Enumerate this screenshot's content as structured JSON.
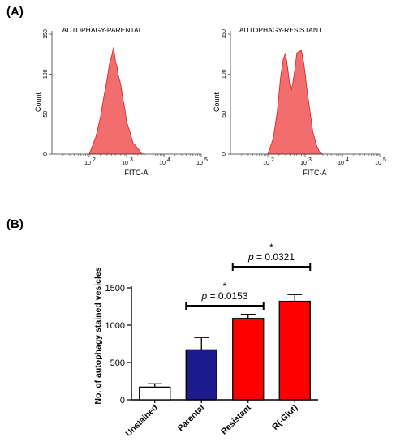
{
  "panel_labels": {
    "a": "(A)",
    "b": "(B)"
  },
  "chart_data": [
    {
      "type": "area",
      "title": "AUTOPHAGY-PARENTAL",
      "xlabel": "FITC-A",
      "ylabel": "Count",
      "x_scale": "log",
      "xlim": [
        10,
        100000
      ],
      "ylim": [
        0,
        150
      ],
      "x_ticks": [
        {
          "base": "10",
          "exp": "2",
          "value": 100
        },
        {
          "base": "10",
          "exp": "3",
          "value": 1000
        },
        {
          "base": "10",
          "exp": "4",
          "value": 10000
        },
        {
          "base": "10",
          "exp": "5",
          "value": 100000
        }
      ],
      "y_ticks": [
        "0",
        "50",
        "100",
        "150"
      ],
      "fill_color": "#f26d6d",
      "stroke_color": "#d42020",
      "x": [
        100,
        150,
        200,
        250,
        300,
        350,
        400,
        450,
        500,
        550,
        600,
        700,
        800,
        900,
        1000,
        1200,
        1500,
        2000,
        2500,
        3000
      ],
      "y": [
        0,
        20,
        48,
        72,
        95,
        112,
        125,
        132,
        118,
        108,
        100,
        85,
        70,
        55,
        42,
        28,
        15,
        6,
        2,
        0
      ]
    },
    {
      "type": "area",
      "title": "AUTOPHAGY-RESISTANT",
      "xlabel": "FITC-A",
      "ylabel": "Count",
      "x_scale": "log",
      "xlim": [
        10,
        100000
      ],
      "ylim": [
        0,
        150
      ],
      "x_ticks": [
        {
          "base": "10",
          "exp": "2",
          "value": 100
        },
        {
          "base": "10",
          "exp": "3",
          "value": 1000
        },
        {
          "base": "10",
          "exp": "4",
          "value": 10000
        },
        {
          "base": "10",
          "exp": "5",
          "value": 100000
        }
      ],
      "y_ticks": [
        "0",
        "50",
        "100",
        "150"
      ],
      "fill_color": "#f26d6d",
      "stroke_color": "#d42020",
      "x": [
        100,
        140,
        180,
        220,
        260,
        300,
        340,
        380,
        420,
        480,
        540,
        600,
        700,
        800,
        900,
        1000,
        1100,
        1300,
        1600,
        2000,
        2500,
        3000
      ],
      "y": [
        0,
        18,
        55,
        95,
        120,
        125,
        110,
        88,
        80,
        90,
        110,
        125,
        130,
        128,
        118,
        100,
        85,
        58,
        30,
        10,
        3,
        0
      ]
    },
    {
      "type": "bar",
      "xlabel": "",
      "ylabel": "No. of autophagy stained vesicles",
      "ylim": [
        0,
        1500
      ],
      "y_ticks": [
        0,
        500,
        1000,
        1500
      ],
      "categories": [
        "Unstained",
        "Parental",
        "Resistant",
        "R(-Glut)"
      ],
      "values": [
        170,
        670,
        1090,
        1320
      ],
      "errors": [
        45,
        165,
        55,
        90
      ],
      "bar_colors": [
        "#ffffff",
        "#1c1a8c",
        "#ff0000",
        "#ff0000"
      ],
      "annotations": [
        {
          "from": 1,
          "to": 2,
          "star": "*",
          "text": "p = 0.0153",
          "p": "p",
          "rest": " = 0.0153"
        },
        {
          "from": 2,
          "to": 3,
          "star": "*",
          "text": "p = 0.0321",
          "p": "p",
          "rest": " = 0.0321"
        }
      ]
    }
  ]
}
